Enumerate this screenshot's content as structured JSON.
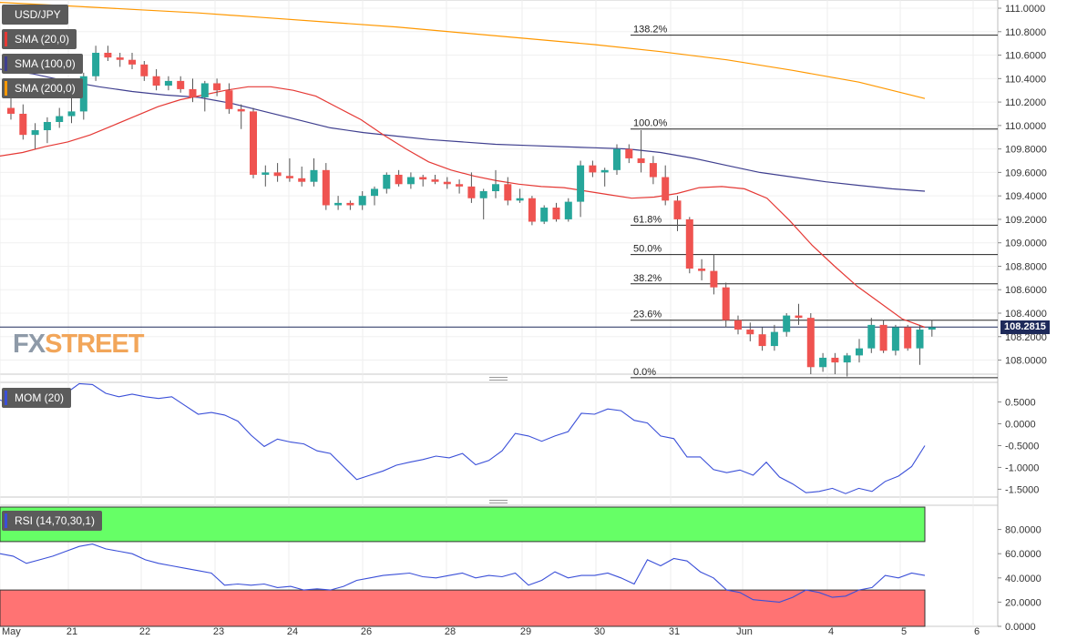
{
  "symbol": "USD/JPY",
  "logo": {
    "part1": "FX",
    "part2": "STREET"
  },
  "current_price": "108.2815",
  "colors": {
    "up": "#26a69a",
    "down": "#ef5350",
    "sma20": "#e53935",
    "sma100": "#3f3f8f",
    "sma200": "#ff9800",
    "mom": "#3a4fd8",
    "rsi": "#3a4fd8",
    "rsi_overbought": "#66ff66",
    "rsi_oversold": "#ff7373"
  },
  "legends": {
    "main": [
      {
        "label": "USD/JPY",
        "color": "#5b5b5b"
      },
      {
        "label": "SMA (20,0)",
        "color": "#e53935"
      },
      {
        "label": "SMA (100,0)",
        "color": "#3f3f8f"
      },
      {
        "label": "SMA (200,0)",
        "color": "#ff9800"
      }
    ],
    "mom": {
      "label": "MOM (20)",
      "color": "#3a4fd8"
    },
    "rsi": {
      "label": "RSI (14,70,30,1)",
      "color": "#3a4fd8"
    }
  },
  "chart_data": [
    {
      "type": "candlestick",
      "title": "USD/JPY",
      "x_labels": [
        "May",
        "21",
        "22",
        "23",
        "24",
        "26",
        "28",
        "29",
        "30",
        "31",
        "Jun",
        "4",
        "5",
        "6"
      ],
      "y_ticks": [
        "108.0000",
        "108.2000",
        "108.4000",
        "108.6000",
        "108.8000",
        "109.0000",
        "109.2000",
        "109.4000",
        "109.6000",
        "109.8000",
        "110.0000",
        "110.2000",
        "110.4000",
        "110.6000",
        "110.8000",
        "111.0000"
      ],
      "ylim": [
        107.88,
        111.07
      ],
      "candles": [
        {
          "o": 110.15,
          "h": 110.28,
          "l": 110.05,
          "c": 110.1
        },
        {
          "o": 110.1,
          "h": 110.18,
          "l": 109.88,
          "c": 109.92
        },
        {
          "o": 109.92,
          "h": 110.02,
          "l": 109.8,
          "c": 109.96
        },
        {
          "o": 109.96,
          "h": 110.07,
          "l": 109.85,
          "c": 110.03
        },
        {
          "o": 110.03,
          "h": 110.15,
          "l": 109.98,
          "c": 110.08
        },
        {
          "o": 110.08,
          "h": 110.25,
          "l": 110.02,
          "c": 110.12
        },
        {
          "o": 110.12,
          "h": 110.45,
          "l": 110.05,
          "c": 110.42
        },
        {
          "o": 110.42,
          "h": 110.68,
          "l": 110.38,
          "c": 110.62
        },
        {
          "o": 110.62,
          "h": 110.68,
          "l": 110.55,
          "c": 110.58
        },
        {
          "o": 110.58,
          "h": 110.62,
          "l": 110.5,
          "c": 110.56
        },
        {
          "o": 110.56,
          "h": 110.62,
          "l": 110.48,
          "c": 110.52
        },
        {
          "o": 110.52,
          "h": 110.55,
          "l": 110.38,
          "c": 110.42
        },
        {
          "o": 110.42,
          "h": 110.48,
          "l": 110.3,
          "c": 110.34
        },
        {
          "o": 110.34,
          "h": 110.42,
          "l": 110.3,
          "c": 110.38
        },
        {
          "o": 110.38,
          "h": 110.42,
          "l": 110.28,
          "c": 110.31
        },
        {
          "o": 110.31,
          "h": 110.4,
          "l": 110.2,
          "c": 110.24
        },
        {
          "o": 110.24,
          "h": 110.38,
          "l": 110.12,
          "c": 110.36
        },
        {
          "o": 110.36,
          "h": 110.4,
          "l": 110.25,
          "c": 110.3
        },
        {
          "o": 110.3,
          "h": 110.36,
          "l": 110.1,
          "c": 110.14
        },
        {
          "o": 110.14,
          "h": 110.18,
          "l": 109.97,
          "c": 110.12
        },
        {
          "o": 110.12,
          "h": 110.15,
          "l": 109.55,
          "c": 109.58
        },
        {
          "o": 109.58,
          "h": 109.66,
          "l": 109.48,
          "c": 109.6
        },
        {
          "o": 109.6,
          "h": 109.68,
          "l": 109.52,
          "c": 109.57
        },
        {
          "o": 109.57,
          "h": 109.72,
          "l": 109.52,
          "c": 109.55
        },
        {
          "o": 109.55,
          "h": 109.65,
          "l": 109.48,
          "c": 109.52
        },
        {
          "o": 109.52,
          "h": 109.72,
          "l": 109.48,
          "c": 109.62
        },
        {
          "o": 109.62,
          "h": 109.68,
          "l": 109.28,
          "c": 109.32
        },
        {
          "o": 109.32,
          "h": 109.4,
          "l": 109.28,
          "c": 109.34
        },
        {
          "o": 109.34,
          "h": 109.36,
          "l": 109.28,
          "c": 109.32
        },
        {
          "o": 109.32,
          "h": 109.44,
          "l": 109.28,
          "c": 109.4
        },
        {
          "o": 109.4,
          "h": 109.48,
          "l": 109.32,
          "c": 109.46
        },
        {
          "o": 109.46,
          "h": 109.6,
          "l": 109.42,
          "c": 109.58
        },
        {
          "o": 109.58,
          "h": 109.62,
          "l": 109.48,
          "c": 109.5
        },
        {
          "o": 109.5,
          "h": 109.6,
          "l": 109.46,
          "c": 109.56
        },
        {
          "o": 109.56,
          "h": 109.58,
          "l": 109.48,
          "c": 109.54
        },
        {
          "o": 109.54,
          "h": 109.58,
          "l": 109.5,
          "c": 109.52
        },
        {
          "o": 109.52,
          "h": 109.56,
          "l": 109.46,
          "c": 109.5
        },
        {
          "o": 109.5,
          "h": 109.54,
          "l": 109.42,
          "c": 109.48
        },
        {
          "o": 109.48,
          "h": 109.6,
          "l": 109.34,
          "c": 109.38
        },
        {
          "o": 109.38,
          "h": 109.46,
          "l": 109.2,
          "c": 109.44
        },
        {
          "o": 109.44,
          "h": 109.62,
          "l": 109.38,
          "c": 109.5
        },
        {
          "o": 109.5,
          "h": 109.56,
          "l": 109.32,
          "c": 109.36
        },
        {
          "o": 109.36,
          "h": 109.46,
          "l": 109.34,
          "c": 109.38
        },
        {
          "o": 109.38,
          "h": 109.4,
          "l": 109.15,
          "c": 109.18
        },
        {
          "o": 109.18,
          "h": 109.32,
          "l": 109.16,
          "c": 109.3
        },
        {
          "o": 109.3,
          "h": 109.34,
          "l": 109.18,
          "c": 109.2
        },
        {
          "o": 109.2,
          "h": 109.38,
          "l": 109.18,
          "c": 109.35
        },
        {
          "o": 109.35,
          "h": 109.7,
          "l": 109.22,
          "c": 109.66
        },
        {
          "o": 109.66,
          "h": 109.7,
          "l": 109.56,
          "c": 109.6
        },
        {
          "o": 109.6,
          "h": 109.64,
          "l": 109.48,
          "c": 109.62
        },
        {
          "o": 109.62,
          "h": 109.84,
          "l": 109.58,
          "c": 109.8
        },
        {
          "o": 109.8,
          "h": 109.84,
          "l": 109.68,
          "c": 109.72
        },
        {
          "o": 109.72,
          "h": 109.96,
          "l": 109.6,
          "c": 109.68
        },
        {
          "o": 109.68,
          "h": 109.74,
          "l": 109.5,
          "c": 109.56
        },
        {
          "o": 109.56,
          "h": 109.66,
          "l": 109.32,
          "c": 109.36
        },
        {
          "o": 109.36,
          "h": 109.4,
          "l": 109.1,
          "c": 109.2
        },
        {
          "o": 109.2,
          "h": 109.22,
          "l": 108.74,
          "c": 108.78
        },
        {
          "o": 108.78,
          "h": 108.86,
          "l": 108.68,
          "c": 108.76
        },
        {
          "o": 108.76,
          "h": 108.9,
          "l": 108.56,
          "c": 108.62
        },
        {
          "o": 108.62,
          "h": 108.66,
          "l": 108.28,
          "c": 108.34
        },
        {
          "o": 108.34,
          "h": 108.38,
          "l": 108.22,
          "c": 108.26
        },
        {
          "o": 108.26,
          "h": 108.32,
          "l": 108.16,
          "c": 108.22
        },
        {
          "o": 108.22,
          "h": 108.28,
          "l": 108.08,
          "c": 108.12
        },
        {
          "o": 108.12,
          "h": 108.3,
          "l": 108.08,
          "c": 108.24
        },
        {
          "o": 108.24,
          "h": 108.4,
          "l": 108.2,
          "c": 108.38
        },
        {
          "o": 108.38,
          "h": 108.48,
          "l": 108.3,
          "c": 108.36
        },
        {
          "o": 108.36,
          "h": 108.4,
          "l": 107.88,
          "c": 107.94
        },
        {
          "o": 107.94,
          "h": 108.06,
          "l": 107.9,
          "c": 108.02
        },
        {
          "o": 108.02,
          "h": 108.06,
          "l": 107.88,
          "c": 107.98
        },
        {
          "o": 107.98,
          "h": 108.06,
          "l": 107.86,
          "c": 108.04
        },
        {
          "o": 108.04,
          "h": 108.18,
          "l": 107.98,
          "c": 108.1
        },
        {
          "o": 108.1,
          "h": 108.36,
          "l": 108.06,
          "c": 108.3
        },
        {
          "o": 108.3,
          "h": 108.34,
          "l": 108.06,
          "c": 108.08
        },
        {
          "o": 108.08,
          "h": 108.3,
          "l": 108.04,
          "c": 108.28
        },
        {
          "o": 108.28,
          "h": 108.3,
          "l": 108.08,
          "c": 108.1
        },
        {
          "o": 108.1,
          "h": 108.3,
          "l": 107.96,
          "c": 108.26
        },
        {
          "o": 108.26,
          "h": 108.34,
          "l": 108.2,
          "c": 108.28
        }
      ],
      "sma20": [
        109.74,
        109.77,
        109.82,
        109.86,
        109.92,
        110.0,
        110.08,
        110.16,
        110.22,
        110.26,
        110.3,
        110.33,
        110.33,
        110.3,
        110.25,
        110.15,
        110.05,
        109.92,
        109.8,
        109.69,
        109.62,
        109.57,
        109.53,
        109.5,
        109.48,
        109.47,
        109.44,
        109.41,
        109.38,
        109.39,
        109.42,
        109.47,
        109.48,
        109.46,
        109.38,
        109.19,
        108.98,
        108.8,
        108.63,
        108.49,
        108.35,
        108.28
      ],
      "sma100": [
        110.48,
        110.44,
        110.38,
        110.33,
        110.29,
        110.26,
        110.24,
        110.19,
        110.12,
        110.05,
        109.98,
        109.94,
        109.91,
        109.88,
        109.86,
        109.84,
        109.83,
        109.82,
        109.81,
        109.8,
        109.77,
        109.72,
        109.66,
        109.6,
        109.56,
        109.52,
        109.49,
        109.46,
        109.44
      ],
      "sma200": [
        111.05,
        111.02,
        110.99,
        110.96,
        110.92,
        110.88,
        110.84,
        110.79,
        110.74,
        110.69,
        110.63,
        110.56,
        110.47,
        110.37,
        110.23
      ],
      "fibonacci": [
        {
          "label": "138.2%",
          "value": 110.77
        },
        {
          "label": "100.0%",
          "value": 109.97
        },
        {
          "label": "61.8%",
          "value": 109.15
        },
        {
          "label": "50.0%",
          "value": 108.9
        },
        {
          "label": "38.2%",
          "value": 108.65
        },
        {
          "label": "23.6%",
          "value": 108.34
        },
        {
          "label": "0.0%",
          "value": 107.85
        }
      ]
    },
    {
      "type": "line",
      "title": "MOM (20)",
      "y_ticks": [
        "-1.5000",
        "-1.0000",
        "-0.5000",
        "0.0000",
        "0.5000"
      ],
      "ylim": [
        -1.68,
        0.95
      ],
      "values": [
        0.55,
        0.4,
        0.55,
        0.55,
        0.62,
        0.7,
        0.92,
        0.9,
        0.7,
        0.62,
        0.68,
        0.62,
        0.58,
        0.62,
        0.42,
        0.22,
        0.26,
        0.2,
        0.06,
        -0.26,
        -0.52,
        -0.35,
        -0.42,
        -0.46,
        -0.62,
        -0.68,
        -0.98,
        -1.28,
        -1.18,
        -1.08,
        -0.95,
        -0.88,
        -0.82,
        -0.74,
        -0.78,
        -0.68,
        -0.94,
        -0.84,
        -0.62,
        -0.22,
        -0.28,
        -0.4,
        -0.28,
        -0.18,
        0.24,
        0.22,
        0.34,
        0.3,
        0.08,
        0.02,
        -0.28,
        -0.34,
        -0.76,
        -0.76,
        -1.05,
        -1.12,
        -1.06,
        -1.18,
        -0.88,
        -1.22,
        -1.38,
        -1.58,
        -1.55,
        -1.48,
        -1.6,
        -1.48,
        -1.55,
        -1.32,
        -1.2,
        -0.98,
        -0.5
      ]
    },
    {
      "type": "line",
      "title": "RSI (14,70,30,1)",
      "y_ticks": [
        "0.0000",
        "20.0000",
        "40.0000",
        "60.0000",
        "80.0000"
      ],
      "ylim": [
        0,
        100
      ],
      "overbought": 70,
      "oversold": 30,
      "values": [
        60,
        58,
        52,
        55,
        58,
        62,
        66,
        68,
        64,
        62,
        60,
        55,
        52,
        50,
        48,
        46,
        44,
        34,
        35,
        34,
        35,
        32,
        33,
        30,
        31,
        30,
        33,
        38,
        40,
        42,
        43,
        44,
        41,
        40,
        42,
        44,
        40,
        42,
        41,
        44,
        34,
        38,
        45,
        40,
        42,
        42,
        44,
        40,
        35,
        55,
        50,
        56,
        54,
        45,
        40,
        30,
        28,
        22,
        21,
        20,
        24,
        30,
        28,
        24,
        25,
        30,
        32,
        42,
        40,
        44,
        42
      ]
    }
  ]
}
